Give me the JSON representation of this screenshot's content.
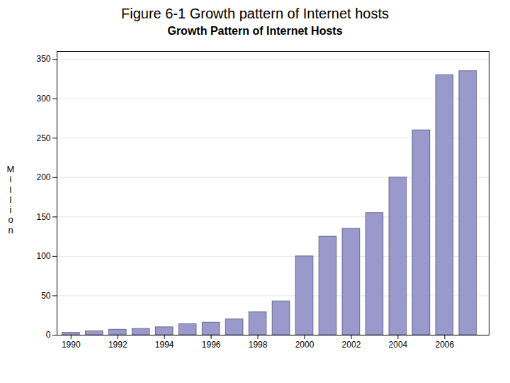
{
  "chart_data": {
    "type": "bar",
    "title": "Figure 6-1 Growth pattern of Internet hosts",
    "subtitle": "Growth Pattern of Internet Hosts",
    "ylabel": "Million",
    "x": [
      1990,
      1991,
      1992,
      1993,
      1994,
      1995,
      1996,
      1997,
      1998,
      1999,
      2000,
      2001,
      2002,
      2003,
      2004,
      2005,
      2006,
      2007
    ],
    "values": [
      3,
      5,
      7,
      8,
      10,
      14,
      16,
      20,
      29,
      43,
      100,
      125,
      135,
      155,
      200,
      260,
      330,
      335
    ],
    "color": "#9999cc",
    "xlim": [
      1989.4,
      2007.9
    ],
    "xticks": [
      1990,
      1992,
      1994,
      1996,
      1998,
      2000,
      2002,
      2004,
      2006
    ],
    "ylim": [
      0,
      360
    ],
    "yticks": [
      0,
      50,
      100,
      150,
      200,
      250,
      300,
      350
    ],
    "grid": true
  }
}
